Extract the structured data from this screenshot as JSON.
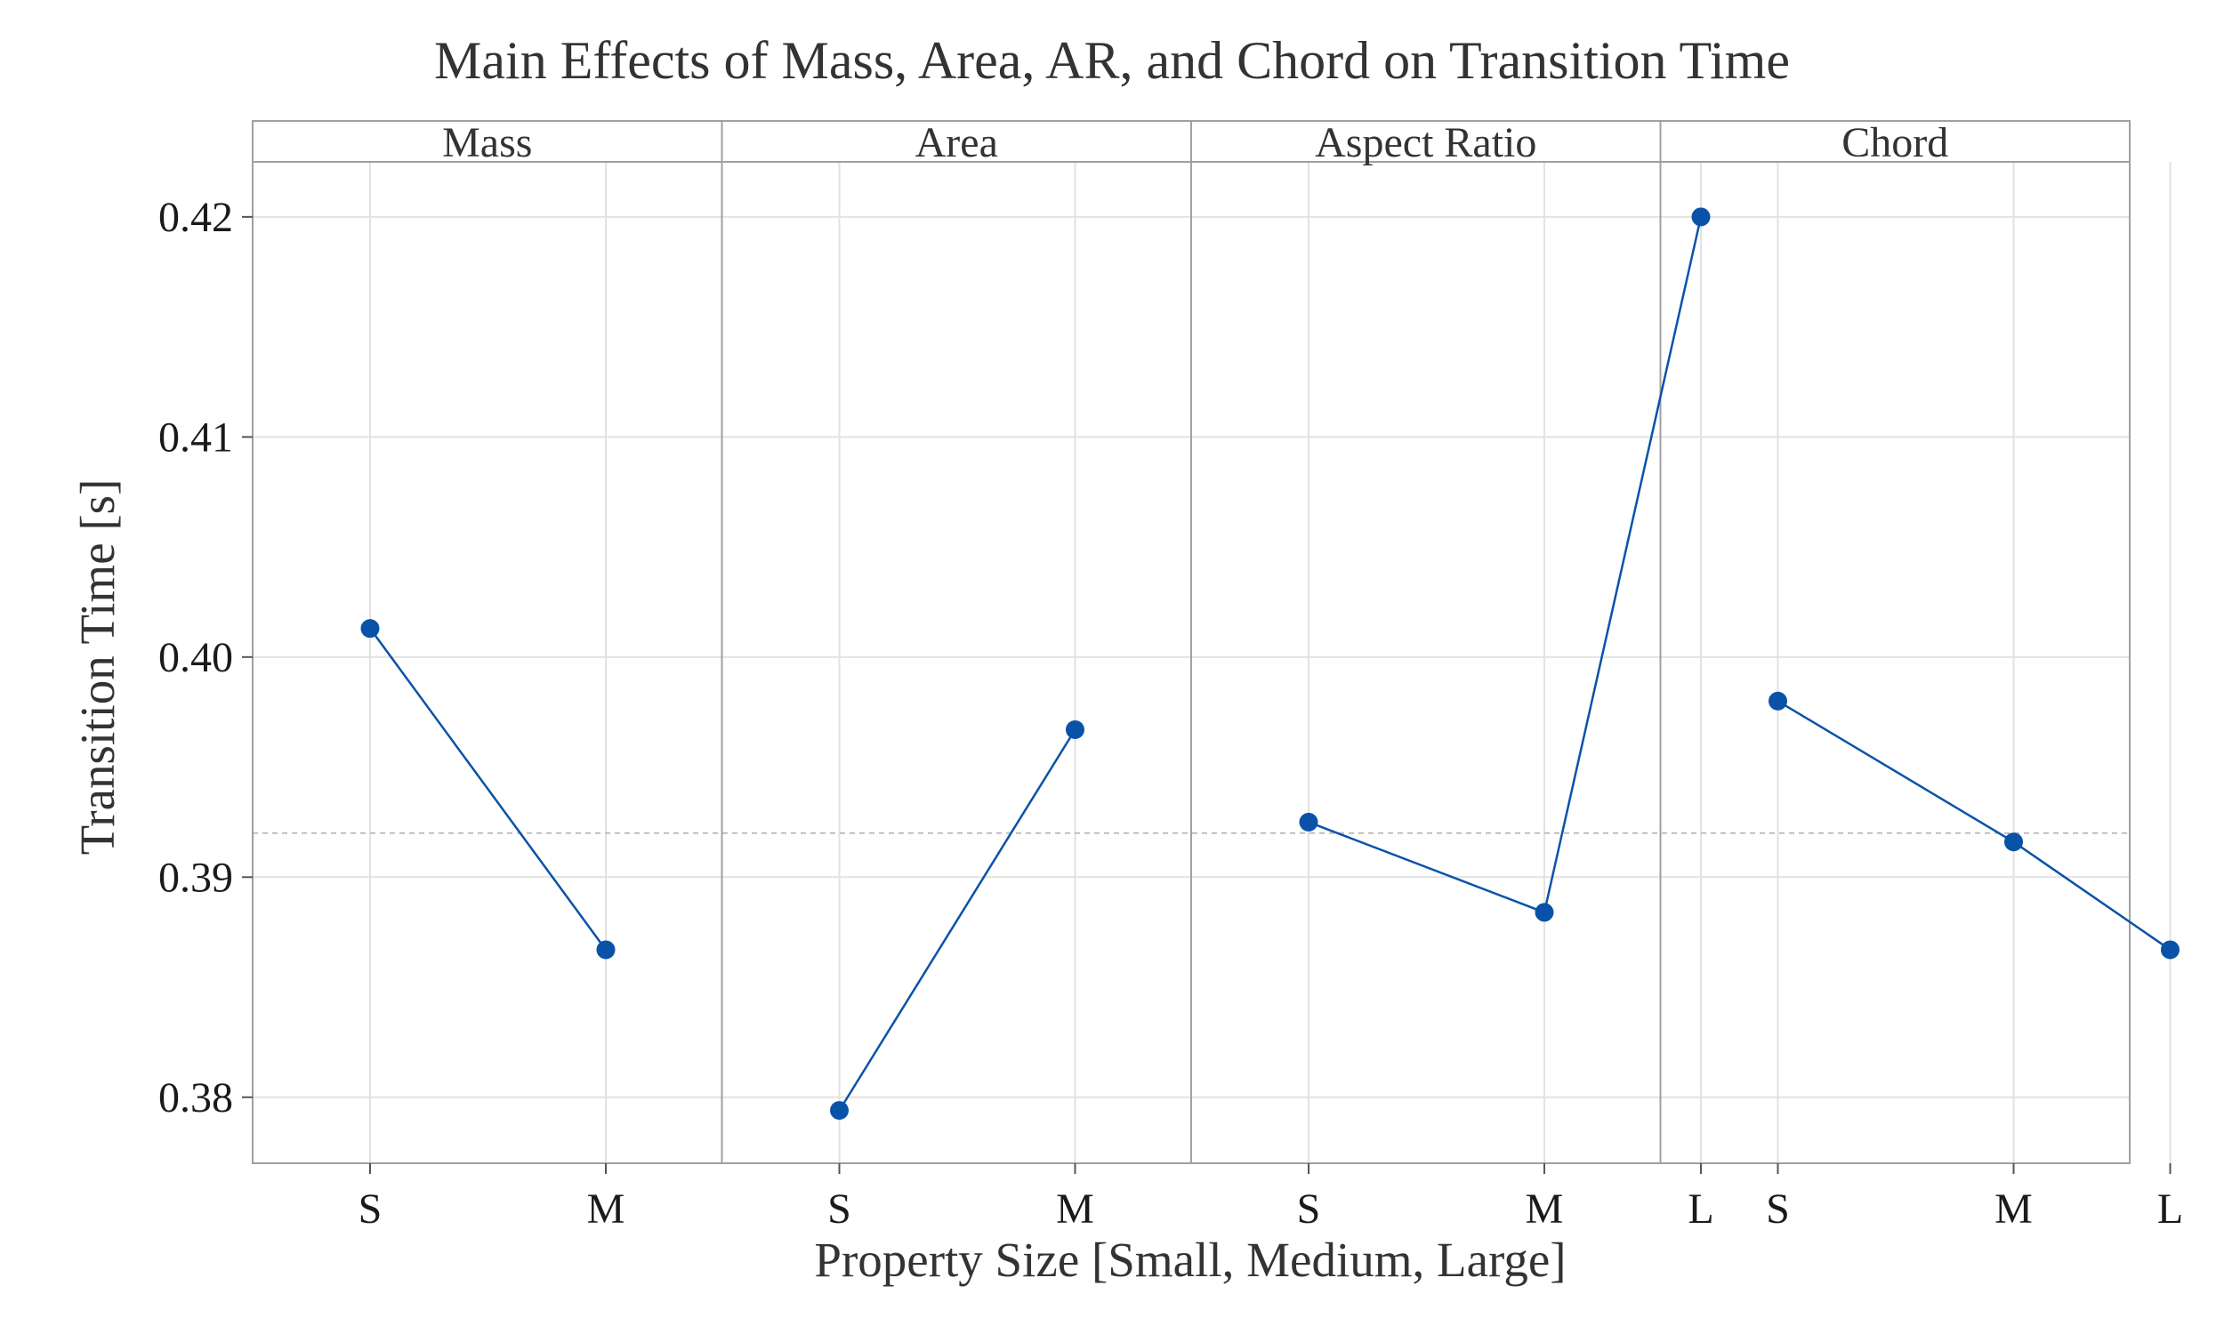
{
  "chart_data": {
    "type": "line",
    "title": "Main Effects of Mass, Area, AR, and Chord on Transition Time",
    "xlabel": "Property Size [Small, Medium, Large]",
    "ylabel": "Transition Time [s]",
    "ylim": [
      0.377,
      0.4225
    ],
    "yticks": [
      "0.38",
      "0.39",
      "0.40",
      "0.41",
      "0.42"
    ],
    "ytick_values": [
      0.38,
      0.39,
      0.4,
      0.41,
      0.42
    ],
    "reference_line": 0.392,
    "grid": true,
    "color": "#0a52a8",
    "x_levels": [
      "S",
      "M",
      "L"
    ],
    "facets": [
      {
        "label": "Mass",
        "categories": [
          "S",
          "M"
        ],
        "values": [
          0.4013,
          0.3867
        ]
      },
      {
        "label": "Area",
        "categories": [
          "S",
          "M"
        ],
        "values": [
          0.3794,
          0.3967
        ]
      },
      {
        "label": "Aspect Ratio",
        "categories": [
          "S",
          "M",
          "L"
        ],
        "values": [
          0.3925,
          0.3884,
          0.42
        ]
      },
      {
        "label": "Chord",
        "categories": [
          "S",
          "M",
          "L"
        ],
        "values": [
          0.398,
          0.3916,
          0.3867
        ]
      }
    ]
  }
}
